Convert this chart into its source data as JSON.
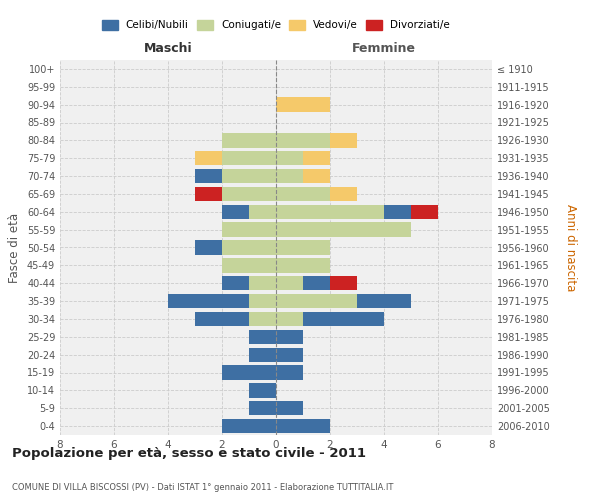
{
  "age_groups": [
    "0-4",
    "5-9",
    "10-14",
    "15-19",
    "20-24",
    "25-29",
    "30-34",
    "35-39",
    "40-44",
    "45-49",
    "50-54",
    "55-59",
    "60-64",
    "65-69",
    "70-74",
    "75-79",
    "80-84",
    "85-89",
    "90-94",
    "95-99",
    "100+"
  ],
  "birth_years": [
    "2006-2010",
    "2001-2005",
    "1996-2000",
    "1991-1995",
    "1986-1990",
    "1981-1985",
    "1976-1980",
    "1971-1975",
    "1966-1970",
    "1961-1965",
    "1956-1960",
    "1951-1955",
    "1946-1950",
    "1941-1945",
    "1936-1940",
    "1931-1935",
    "1926-1930",
    "1921-1925",
    "1916-1920",
    "1911-1915",
    "≤ 1910"
  ],
  "maschi": {
    "celibi": [
      2,
      1,
      1,
      2,
      1,
      1,
      2,
      3,
      1,
      0,
      1,
      0,
      1,
      0,
      1,
      0,
      0,
      0,
      0,
      0,
      0
    ],
    "coniugati": [
      0,
      0,
      0,
      0,
      0,
      0,
      1,
      1,
      1,
      2,
      2,
      2,
      1,
      2,
      2,
      2,
      2,
      0,
      0,
      0,
      0
    ],
    "vedovi": [
      0,
      0,
      0,
      0,
      0,
      0,
      0,
      0,
      0,
      0,
      0,
      0,
      0,
      0,
      0,
      1,
      0,
      0,
      0,
      0,
      0
    ],
    "divorziati": [
      0,
      0,
      0,
      0,
      0,
      0,
      0,
      0,
      0,
      0,
      0,
      0,
      0,
      1,
      0,
      0,
      0,
      0,
      0,
      0,
      0
    ]
  },
  "femmine": {
    "nubili": [
      2,
      1,
      0,
      1,
      1,
      1,
      3,
      2,
      1,
      0,
      0,
      0,
      1,
      0,
      0,
      0,
      0,
      0,
      0,
      0,
      0
    ],
    "coniugate": [
      0,
      0,
      0,
      0,
      0,
      0,
      1,
      3,
      1,
      2,
      2,
      5,
      4,
      2,
      1,
      1,
      2,
      0,
      0,
      0,
      0
    ],
    "vedove": [
      0,
      0,
      0,
      0,
      0,
      0,
      0,
      0,
      0,
      0,
      0,
      0,
      0,
      1,
      1,
      1,
      1,
      0,
      2,
      0,
      0
    ],
    "divorziate": [
      0,
      0,
      0,
      0,
      0,
      0,
      0,
      0,
      1,
      0,
      0,
      0,
      1,
      0,
      0,
      0,
      0,
      0,
      0,
      0,
      0
    ]
  },
  "color_celibi": "#3e6fa3",
  "color_coniugati": "#c5d49a",
  "color_vedovi": "#f5c96a",
  "color_divorziati": "#cc2222",
  "xlim": 8,
  "title": "Popolazione per età, sesso e stato civile - 2011",
  "subtitle": "COMUNE DI VILLA BISCOSSI (PV) - Dati ISTAT 1° gennaio 2011 - Elaborazione TUTTITALIA.IT",
  "ylabel_left": "Fasce di età",
  "ylabel_right": "Anni di nascita",
  "xlabel_maschi": "Maschi",
  "xlabel_femmine": "Femmine",
  "bg_color": "#f0f0f0",
  "grid_color": "#cccccc"
}
